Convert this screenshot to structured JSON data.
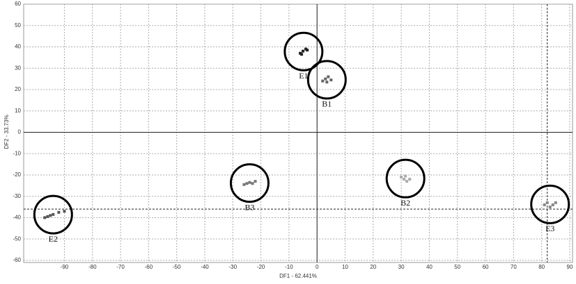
{
  "chart_data": {
    "type": "scatter",
    "x_label": "DF1 - 62.441%",
    "y_label": "DF2 - 33.73%",
    "xlim": [
      -104.5,
      91
    ],
    "ylim": [
      -61,
      60
    ],
    "xticks": [
      -90,
      -80,
      -70,
      -60,
      -50,
      -40,
      -30,
      -20,
      -10,
      0,
      10,
      20,
      30,
      40,
      50,
      60,
      70,
      80,
      90
    ],
    "yticks": [
      -60,
      -50,
      -40,
      -30,
      -20,
      -10,
      0,
      10,
      20,
      30,
      40,
      50,
      60
    ],
    "grid": true,
    "crosshair": {
      "x": 82,
      "y": -36
    },
    "series": [
      {
        "name": "E1",
        "color": "#222222",
        "x": [
          -6,
          -5,
          -4,
          -5.5,
          -3.5
        ],
        "y": [
          37,
          38,
          39,
          36.5,
          38.5
        ]
      },
      {
        "name": "B1",
        "color": "#666666",
        "x": [
          2,
          3,
          4,
          5,
          3.5
        ],
        "y": [
          24,
          25,
          26,
          24.5,
          23.5
        ]
      },
      {
        "name": "B3",
        "color": "#777777",
        "x": [
          -26,
          -25,
          -24,
          -23,
          -22
        ],
        "y": [
          -24.5,
          -24,
          -23.5,
          -24,
          -23
        ]
      },
      {
        "name": "B2",
        "color": "#aaaaaa",
        "x": [
          30,
          31,
          32,
          31.5,
          33
        ],
        "y": [
          -21,
          -22,
          -23,
          -20.5,
          -22
        ]
      },
      {
        "name": "E2",
        "color": "#555555",
        "x": [
          -97,
          -96,
          -95,
          -94,
          -92,
          -90
        ],
        "y": [
          -40,
          -39.5,
          -39,
          -38.5,
          -37.5,
          -37
        ]
      },
      {
        "name": "E3",
        "color": "#888888",
        "x": [
          81,
          82,
          83,
          84,
          85
        ],
        "y": [
          -34,
          -33,
          -35,
          -34,
          -33
        ]
      }
    ]
  }
}
